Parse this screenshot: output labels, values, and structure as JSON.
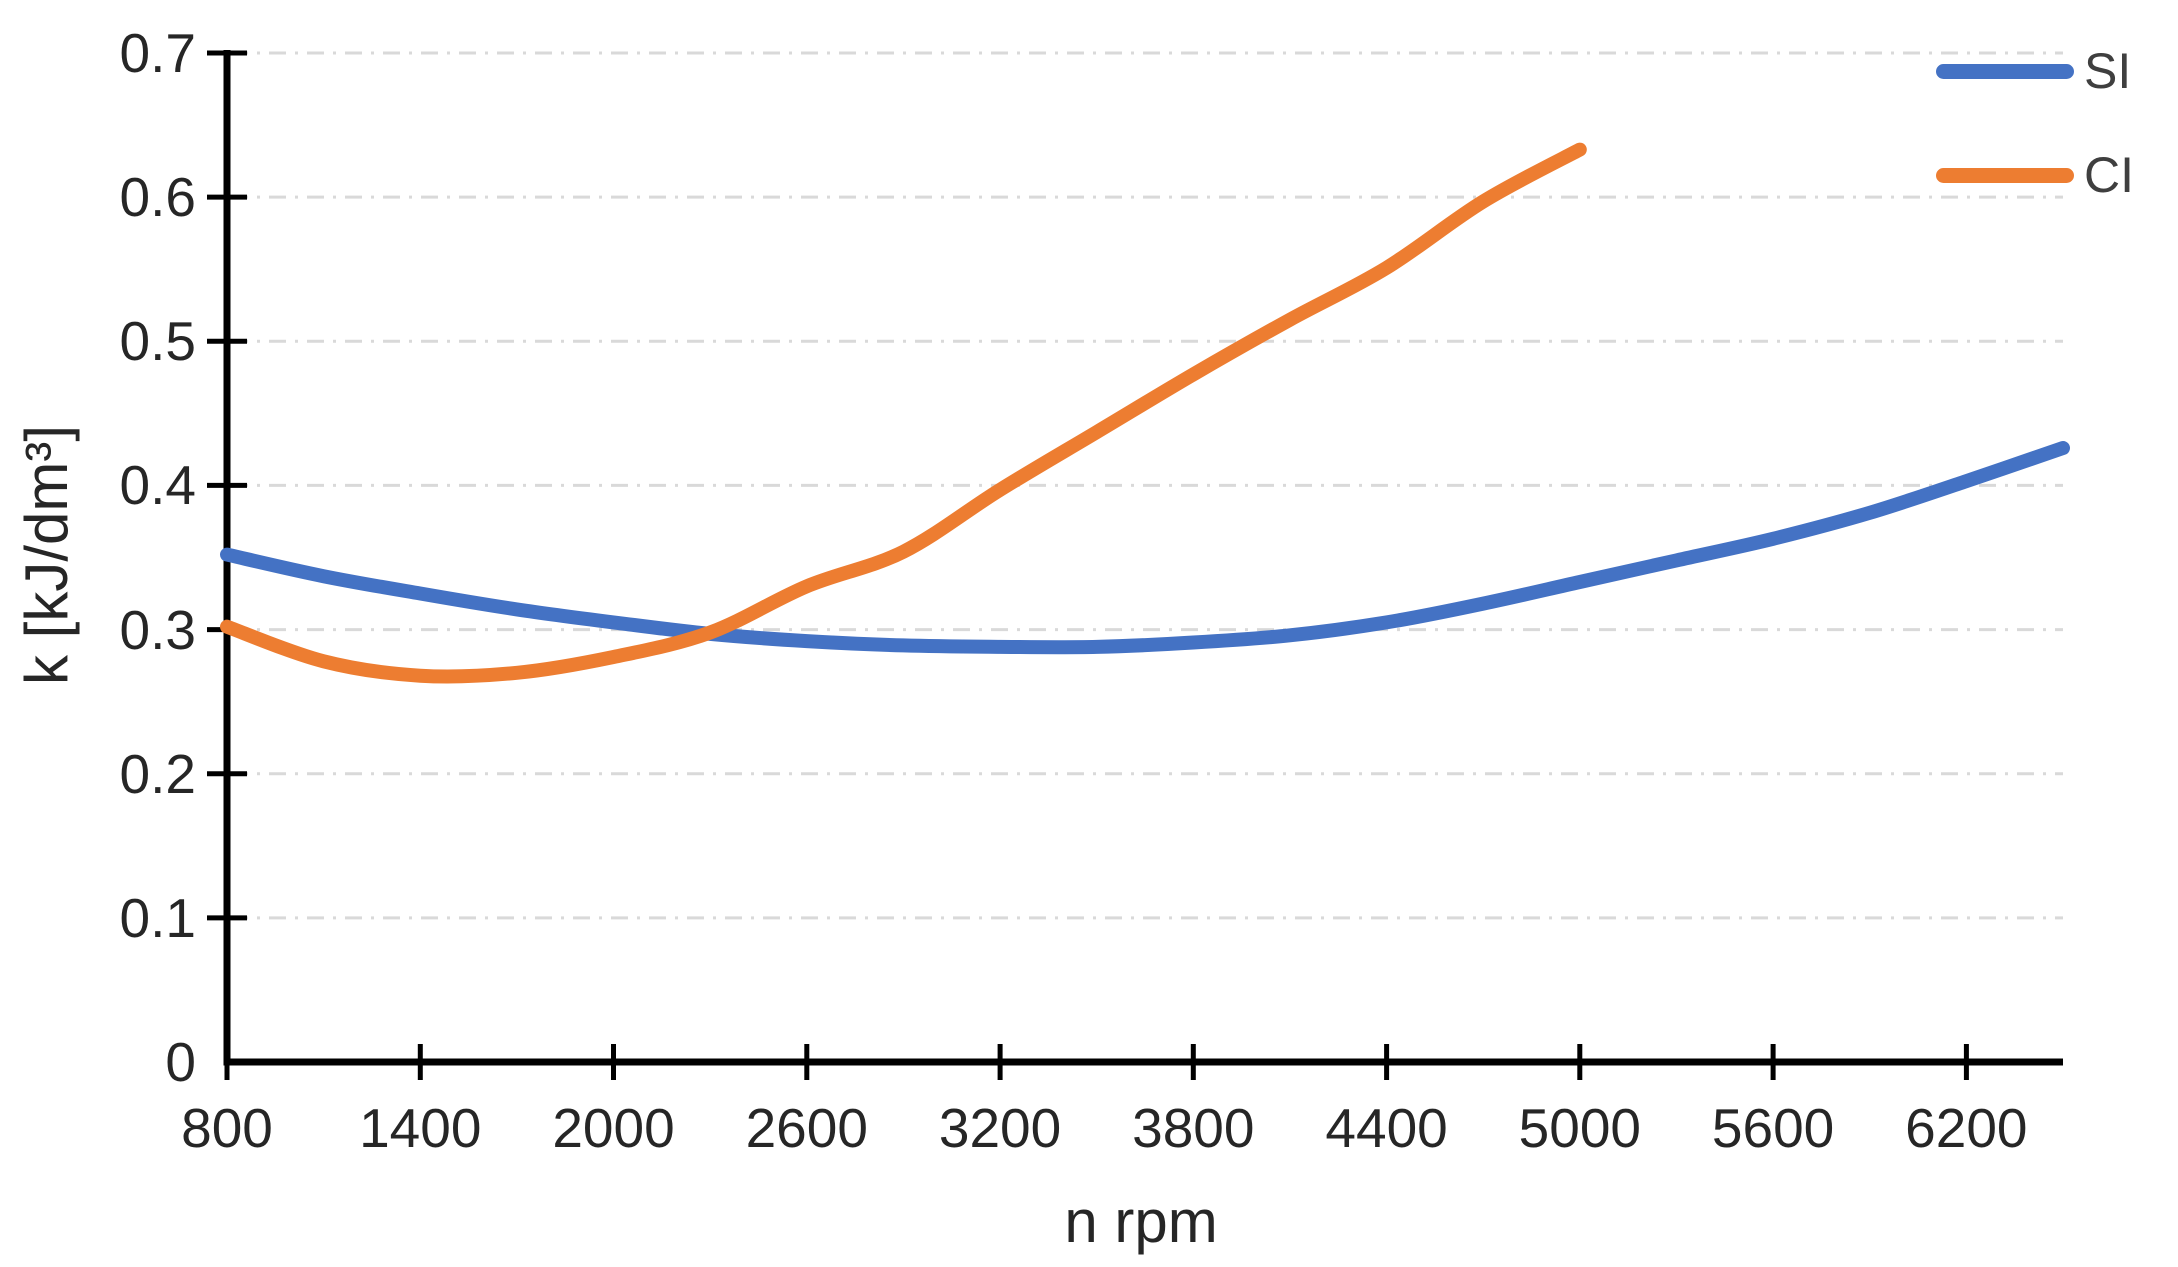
{
  "chart_data": {
    "type": "line",
    "title": "",
    "xlabel": "n rpm",
    "ylabel": "k [kJ/dm³]",
    "xlim": [
      800,
      6500
    ],
    "ylim": [
      0,
      0.7
    ],
    "x_ticks": [
      800,
      1400,
      2000,
      2600,
      3200,
      3800,
      4400,
      5000,
      5600,
      6200
    ],
    "x_tick_labels": [
      "800",
      "1400",
      "2000",
      "2600",
      "3200",
      "3800",
      "4400",
      "5000",
      "5600",
      "6200"
    ],
    "y_ticks": [
      0,
      0.1,
      0.2,
      0.3,
      0.4,
      0.5,
      0.6,
      0.7
    ],
    "y_tick_labels": [
      "0",
      "0.1",
      "0.2",
      "0.3",
      "0.4",
      "0.5",
      "0.6",
      "0.7"
    ],
    "grid": "horizontal-dashed",
    "legend_position": "top-right",
    "colors": {
      "axis": "#000000",
      "gridline": "#d9d9d9",
      "tick_text": "#262626"
    },
    "series": [
      {
        "name": "SI",
        "color": "#4472C4",
        "x": [
          800,
          1100,
          1400,
          1700,
          2000,
          2300,
          2600,
          2900,
          3200,
          3500,
          3800,
          4100,
          4400,
          4700,
          5000,
          5300,
          5600,
          5900,
          6200,
          6500
        ],
        "y": [
          0.352,
          0.337,
          0.325,
          0.314,
          0.305,
          0.297,
          0.292,
          0.289,
          0.288,
          0.288,
          0.291,
          0.296,
          0.305,
          0.318,
          0.333,
          0.348,
          0.363,
          0.381,
          0.403,
          0.426
        ]
      },
      {
        "name": "CI",
        "color": "#ED7D31",
        "x": [
          800,
          1100,
          1400,
          1700,
          2000,
          2300,
          2600,
          2900,
          3200,
          3500,
          3800,
          4100,
          4400,
          4700,
          5000
        ],
        "y": [
          0.302,
          0.278,
          0.268,
          0.27,
          0.281,
          0.298,
          0.33,
          0.354,
          0.397,
          0.437,
          0.477,
          0.515,
          0.551,
          0.597,
          0.633
        ]
      }
    ]
  }
}
